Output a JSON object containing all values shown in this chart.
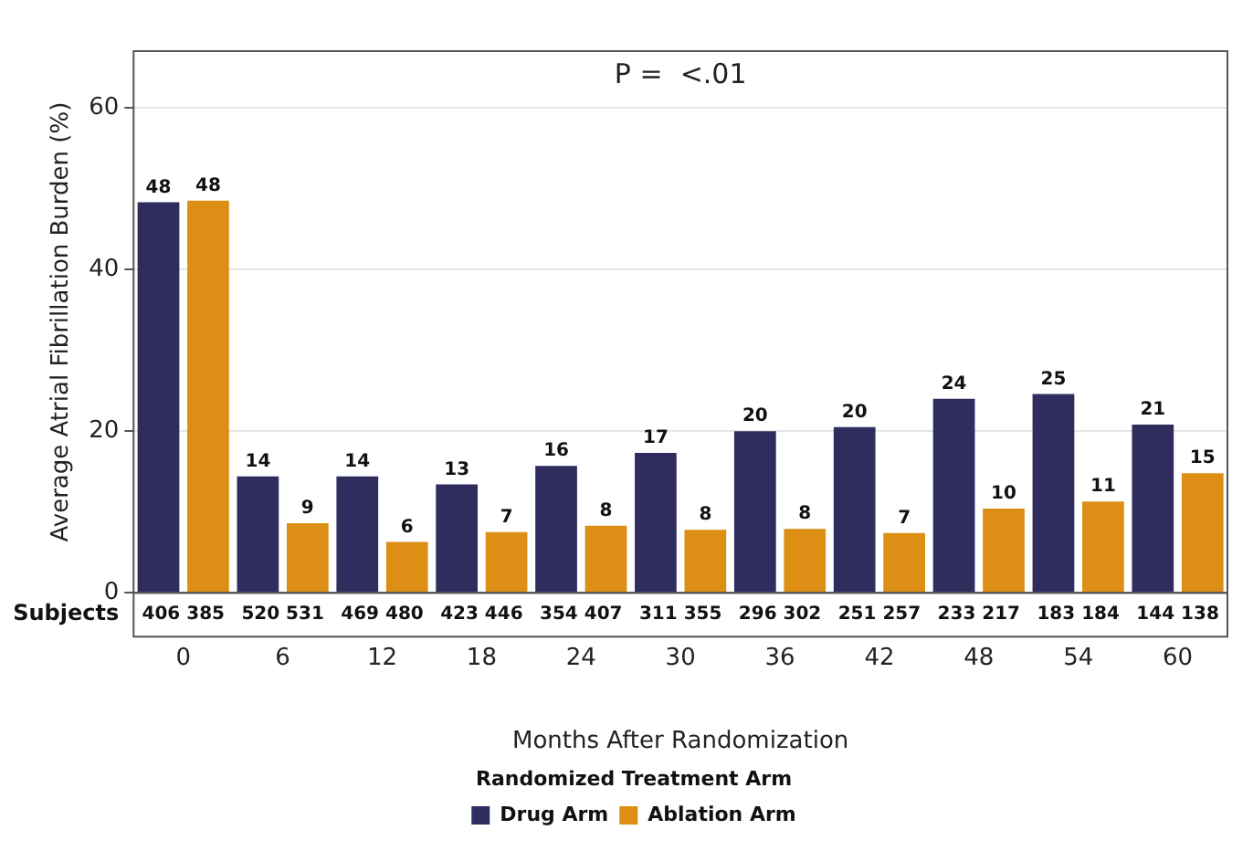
{
  "chart_data": {
    "type": "bar",
    "title": "P =  <.01",
    "xlabel": "Months After Randomization",
    "ylabel": "Average Atrial Fibrillation Burden (%)",
    "legend_title": "Randomized Treatment Arm",
    "categories": [
      "0",
      "6",
      "12",
      "18",
      "24",
      "30",
      "36",
      "42",
      "48",
      "54",
      "60"
    ],
    "series": [
      {
        "name": "Drug Arm",
        "color": "#2e2d5e",
        "values": [
          48.3,
          14.4,
          14.4,
          13.4,
          15.7,
          17.3,
          20.0,
          20.5,
          24.0,
          24.6,
          20.8
        ],
        "value_labels": [
          "48",
          "14",
          "14",
          "13",
          "16",
          "17",
          "20",
          "20",
          "24",
          "25",
          "21"
        ]
      },
      {
        "name": "Ablation Arm",
        "color": "#dc8f14",
        "values": [
          48.5,
          8.6,
          6.3,
          7.5,
          8.3,
          7.8,
          7.9,
          7.4,
          10.4,
          11.3,
          14.8
        ],
        "value_labels": [
          "48",
          "9",
          "6",
          "7",
          "8",
          "8",
          "8",
          "7",
          "10",
          "11",
          "15"
        ]
      }
    ],
    "ylim": [
      0,
      67
    ],
    "yticks": [
      0,
      20,
      40,
      60
    ],
    "grid": "y",
    "legend": "bottom",
    "annotations": [
      "Subjects",
      "406 385",
      "520 531",
      "469 480",
      "423 446",
      "354 407",
      "311 355",
      "296 302",
      "251 257",
      "233 217",
      "183 184",
      "144 138"
    ]
  }
}
